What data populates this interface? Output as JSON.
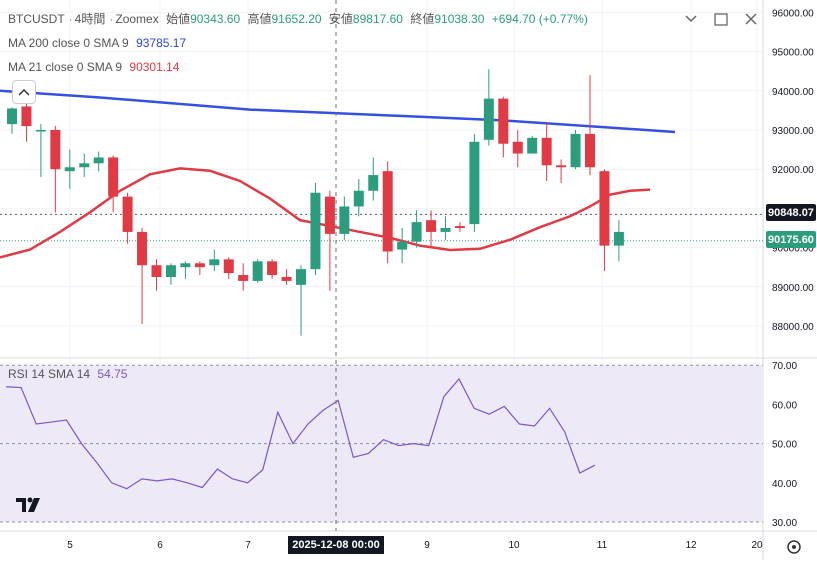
{
  "header": {
    "symbol": "BTCUSDT",
    "interval": "4時間",
    "exchange": "Zoomex",
    "open_label": "始値",
    "open_value": "90343.60",
    "high_label": "高値",
    "high_value": "91652.20",
    "low_label": "安値",
    "low_value": "89817.60",
    "close_label": "終値",
    "close_value": "91038.30",
    "change": "+694.70 (+0.77%)"
  },
  "indicators": {
    "ma200": {
      "label": "MA 200 close 0 SMA 9",
      "value": "93785.17",
      "color": "#3550e0"
    },
    "ma21": {
      "label": "MA 21 close 0 SMA 9",
      "value": "90301.14",
      "color": "#e03a45"
    },
    "rsi": {
      "label": "RSI 14 SMA 14",
      "value": "54.75",
      "color": "#7e57c2"
    }
  },
  "colors": {
    "up": "#2b9d7e",
    "down": "#e03a45",
    "rsi_bg": "#ede9f7"
  },
  "price_badges": {
    "dashed_level": "90848.07",
    "last_price": "90175.60"
  },
  "crosshair_time": "2025-12-08  00:00",
  "icons": [
    "chevron-up-icon",
    "chevron-down-icon",
    "maximize-icon",
    "close-icon",
    "gear-icon",
    "tradingview-logo-icon"
  ],
  "chart_data": [
    {
      "type": "candlestick",
      "title": "BTCUSDT 4時間 Zoomex",
      "y_axis_ticks": [
        88000,
        89000,
        90000,
        91000,
        92000,
        93000,
        94000,
        95000,
        96000
      ],
      "y_axis_tick_labels": [
        "88000.00",
        "89000.00",
        "90000.00",
        "91000.00",
        "92000.00",
        "93000.00",
        "94000.00",
        "95000.00",
        "96000.00"
      ],
      "ylim": [
        87300,
        96150
      ],
      "x_axis_tick_labels": [
        "5",
        "6",
        "7",
        "9",
        "10",
        "11",
        "12",
        "20"
      ],
      "candles": [
        {
          "o": 93150,
          "h": 93580,
          "l": 92900,
          "c": 93550
        },
        {
          "o": 93600,
          "h": 93800,
          "l": 92700,
          "c": 93100
        },
        {
          "o": 93000,
          "h": 93150,
          "l": 91800,
          "c": 93000
        },
        {
          "o": 93000,
          "h": 93100,
          "l": 90900,
          "c": 92000
        },
        {
          "o": 91950,
          "h": 92500,
          "l": 91500,
          "c": 92050
        },
        {
          "o": 92050,
          "h": 92400,
          "l": 91800,
          "c": 92150
        },
        {
          "o": 92150,
          "h": 92450,
          "l": 91950,
          "c": 92300
        },
        {
          "o": 92300,
          "h": 92350,
          "l": 90900,
          "c": 91300
        },
        {
          "o": 91300,
          "h": 91400,
          "l": 90100,
          "c": 90400
        },
        {
          "o": 90400,
          "h": 90500,
          "l": 88050,
          "c": 89550
        },
        {
          "o": 89550,
          "h": 89700,
          "l": 88900,
          "c": 89250
        },
        {
          "o": 89250,
          "h": 89600,
          "l": 89050,
          "c": 89550
        },
        {
          "o": 89500,
          "h": 89650,
          "l": 89200,
          "c": 89600
        },
        {
          "o": 89600,
          "h": 89650,
          "l": 89300,
          "c": 89500
        },
        {
          "o": 89550,
          "h": 89950,
          "l": 89400,
          "c": 89700
        },
        {
          "o": 89700,
          "h": 89750,
          "l": 89200,
          "c": 89350
        },
        {
          "o": 89300,
          "h": 89600,
          "l": 88900,
          "c": 89150
        },
        {
          "o": 89150,
          "h": 89700,
          "l": 89100,
          "c": 89650
        },
        {
          "o": 89650,
          "h": 89700,
          "l": 89200,
          "c": 89300
        },
        {
          "o": 89250,
          "h": 89450,
          "l": 89050,
          "c": 89150
        },
        {
          "o": 89050,
          "h": 89550,
          "l": 87750,
          "c": 89450
        },
        {
          "o": 89450,
          "h": 91650,
          "l": 89300,
          "c": 91400
        },
        {
          "o": 91300,
          "h": 91450,
          "l": 88900,
          "c": 90350
        },
        {
          "o": 90350,
          "h": 91300,
          "l": 90200,
          "c": 91050
        },
        {
          "o": 91050,
          "h": 91750,
          "l": 90800,
          "c": 91450
        },
        {
          "o": 91450,
          "h": 92300,
          "l": 91200,
          "c": 91850
        },
        {
          "o": 91950,
          "h": 92200,
          "l": 89600,
          "c": 89900
        },
        {
          "o": 89950,
          "h": 90500,
          "l": 89600,
          "c": 90150
        },
        {
          "o": 90150,
          "h": 90950,
          "l": 90000,
          "c": 90650
        },
        {
          "o": 90700,
          "h": 90950,
          "l": 90000,
          "c": 90400
        },
        {
          "o": 90400,
          "h": 90800,
          "l": 90200,
          "c": 90500
        },
        {
          "o": 90550,
          "h": 90650,
          "l": 90400,
          "c": 90500
        },
        {
          "o": 90600,
          "h": 92900,
          "l": 90400,
          "c": 92700
        },
        {
          "o": 92750,
          "h": 94550,
          "l": 92600,
          "c": 93800
        },
        {
          "o": 93800,
          "h": 93850,
          "l": 92300,
          "c": 92650
        },
        {
          "o": 92700,
          "h": 93000,
          "l": 92050,
          "c": 92400
        },
        {
          "o": 92400,
          "h": 92850,
          "l": 92400,
          "c": 92800
        },
        {
          "o": 92800,
          "h": 93200,
          "l": 91700,
          "c": 92100
        },
        {
          "o": 92100,
          "h": 92250,
          "l": 91650,
          "c": 92050
        },
        {
          "o": 92050,
          "h": 93000,
          "l": 92000,
          "c": 92900
        },
        {
          "o": 92900,
          "h": 94400,
          "l": 91850,
          "c": 92050
        },
        {
          "o": 91950,
          "h": 92000,
          "l": 89400,
          "c": 90050
        },
        {
          "o": 90050,
          "h": 90700,
          "l": 89650,
          "c": 90400
        }
      ],
      "ma200_series": [
        94000,
        93830,
        93520,
        93360,
        93250,
        92950
      ],
      "ma21_series": [
        89750,
        89950,
        90400,
        90900,
        91450,
        91870,
        92020,
        91960,
        91700,
        91250,
        90700,
        90550,
        90400,
        90250,
        90050,
        89940,
        89970,
        90200,
        90520,
        90800,
        91050,
        91350,
        91450,
        91480
      ],
      "price_line": 90175.6,
      "dashed_level": 90848.07
    },
    {
      "type": "line",
      "title": "RSI 14 SMA 14",
      "ylim": [
        29,
        70
      ],
      "y_axis_ticks": [
        30,
        40,
        50,
        60,
        70
      ],
      "y_axis_tick_labels": [
        "30.00",
        "40.00",
        "50.00",
        "60.00",
        "70.00"
      ],
      "band": [
        30,
        70
      ],
      "values": [
        64.5,
        64.3,
        55,
        55.5,
        56,
        50,
        45.2,
        40,
        38.5,
        41,
        40.5,
        41,
        40,
        38.8,
        43.5,
        41,
        40,
        43.3,
        58,
        50,
        55,
        58.5,
        61,
        46.5,
        47.5,
        51,
        49.5,
        50,
        49.5,
        62,
        66.5,
        59,
        57.5,
        59.5,
        55,
        54.5,
        59,
        53,
        42.5,
        44.5
      ]
    }
  ]
}
